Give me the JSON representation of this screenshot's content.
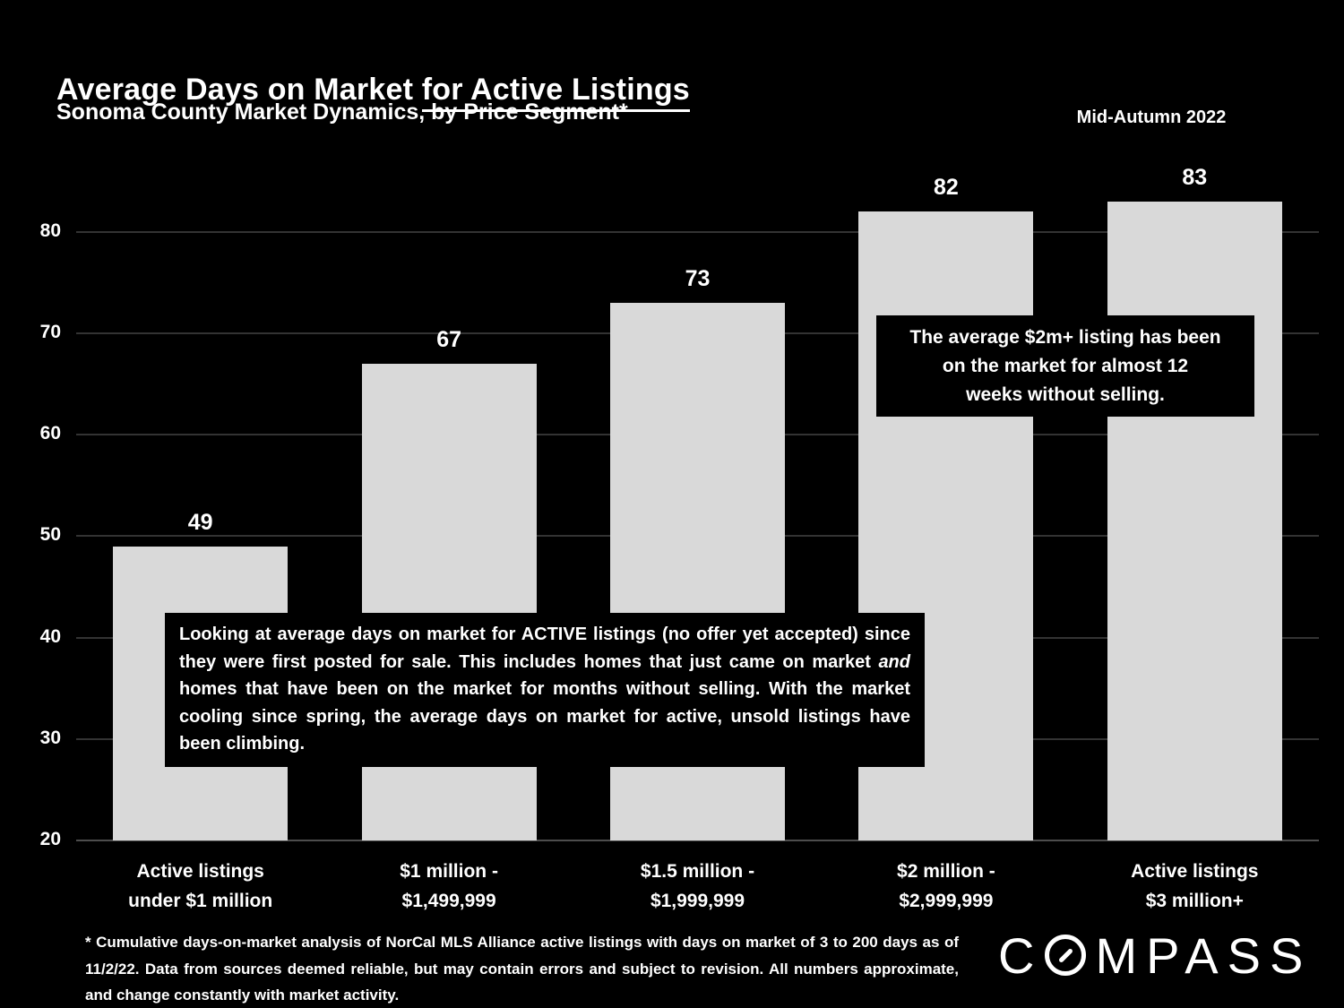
{
  "header": {
    "title_plain": "Average Days on Market ",
    "title_underlined": "for Active Listings",
    "subtitle": "Sonoma County Market Dynamics, by Price Segment*",
    "period": "Mid-Autumn 2022"
  },
  "chart_data": {
    "type": "bar",
    "title": "Average Days on Market for Active Listings",
    "subtitle": "Sonoma County Market Dynamics, by Price Segment*",
    "period": "Mid-Autumn 2022",
    "categories": [
      [
        "Active listings",
        "under $1 million"
      ],
      [
        "$1 million -",
        "$1,499,999"
      ],
      [
        "$1.5 million -",
        "$1,999,999"
      ],
      [
        "$2 million -",
        "$2,999,999"
      ],
      [
        "Active listings",
        "$3 million+"
      ]
    ],
    "values": [
      49,
      67,
      73,
      82,
      83
    ],
    "xlabel": "",
    "ylabel": "",
    "y_ticks": [
      20,
      30,
      40,
      50,
      60,
      70,
      80
    ],
    "ylim": [
      20,
      87
    ],
    "grid": true,
    "legend": "none",
    "annotations": {
      "box1": {
        "lines": [
          "The average $2m+ listing has been",
          "on the market for almost 12",
          "weeks without selling."
        ]
      },
      "box2": {
        "before": "Looking at average days on market for ACTIVE listings (no offer yet accepted) since they were first posted for sale. This includes homes that just came on market ",
        "italic": "and",
        "after": " homes that have been on the market for months without selling. With the market cooling since spring, the average days on market for active, unsold listings have been climbing."
      }
    }
  },
  "footer": {
    "footnote": "* Cumulative days-on-market analysis of NorCal MLS Alliance active listings with days on market of 3 to 200 days as of 11/2/22. Data from sources deemed reliable, but may contain errors and subject to revision. All numbers approximate, and change constantly with market activity.",
    "logo_prefix": "C",
    "logo_suffix": "MPASS"
  },
  "colors": {
    "background": "#000000",
    "bar_fill": "#d9d9d9",
    "gridline": "#333333",
    "axis_line": "#4d4d4d",
    "text": "#ffffff",
    "annotation_bg": "#000000",
    "annotation_text": "#ffffff"
  }
}
